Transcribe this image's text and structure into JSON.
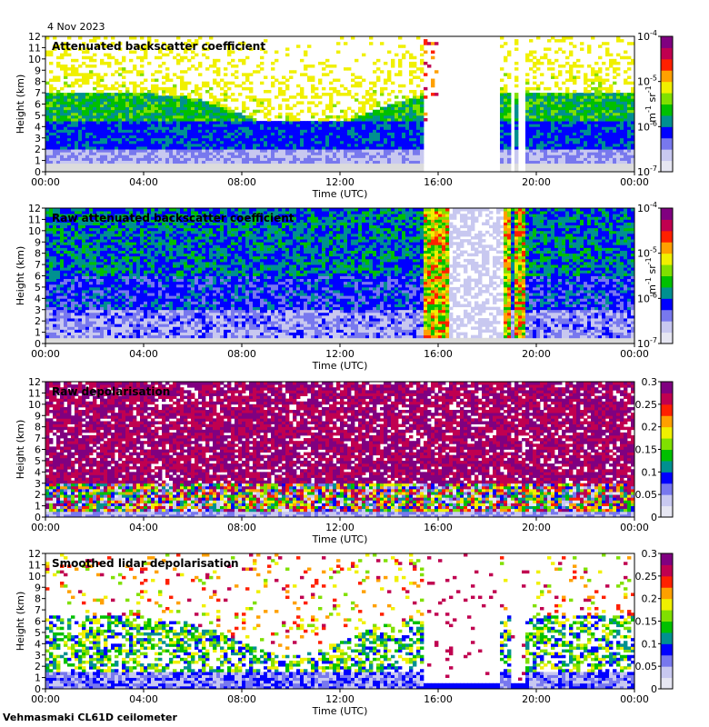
{
  "date": "4 Nov 2023",
  "footer": "Vehmasmaki CL61D ceilometer",
  "colors": {
    "colormap": [
      "#e6e6f2",
      "#c8c8f0",
      "#7878ee",
      "#0000ff",
      "#009090",
      "#00c000",
      "#80e000",
      "#f0f000",
      "#ffa000",
      "#ff2000",
      "#c00050",
      "#800080"
    ],
    "empty": "#dcdcdc",
    "background": "#ffffff"
  },
  "chart_data": [
    {
      "type": "heatmap",
      "title": "Attenuated backscatter coefficient",
      "xlabel": "Time (UTC)",
      "ylabel": "Height (km)",
      "x_ticks": [
        "00:00",
        "04:00",
        "08:00",
        "12:00",
        "16:00",
        "20:00",
        "00:00"
      ],
      "y_ticks": [
        "0",
        "1",
        "2",
        "3",
        "4",
        "5",
        "6",
        "7",
        "8",
        "9",
        "10",
        "11",
        "12"
      ],
      "xlim": [
        0,
        24
      ],
      "ylim": [
        0,
        12
      ],
      "colorbar": {
        "scale": "log",
        "unit_base": "m",
        "unit_exp1": "-1",
        "unit_mid": " sr",
        "unit_exp2": "-1",
        "ticks": [
          {
            "base": "10",
            "exp": "-7"
          },
          {
            "base": "10",
            "exp": "-6"
          },
          {
            "base": "10",
            "exp": "-5"
          },
          {
            "base": "10",
            "exp": "-4"
          }
        ]
      }
    },
    {
      "type": "heatmap",
      "title": "Raw attenuated backscatter coefficient",
      "xlabel": "Time (UTC)",
      "ylabel": "Height (km)",
      "x_ticks": [
        "00:00",
        "04:00",
        "08:00",
        "12:00",
        "16:00",
        "20:00",
        "00:00"
      ],
      "y_ticks": [
        "0",
        "1",
        "2",
        "3",
        "4",
        "5",
        "6",
        "7",
        "8",
        "9",
        "10",
        "11",
        "12"
      ],
      "xlim": [
        0,
        24
      ],
      "ylim": [
        0,
        12
      ],
      "colorbar": {
        "scale": "log",
        "unit_base": "m",
        "unit_exp1": "-1",
        "unit_mid": " sr",
        "unit_exp2": "-1",
        "ticks": [
          {
            "base": "10",
            "exp": "-7"
          },
          {
            "base": "10",
            "exp": "-6"
          },
          {
            "base": "10",
            "exp": "-5"
          },
          {
            "base": "10",
            "exp": "-4"
          }
        ]
      }
    },
    {
      "type": "heatmap",
      "title": "Raw depolarisation",
      "xlabel": "Time (UTC)",
      "ylabel": "Height (km)",
      "x_ticks": [
        "00:00",
        "04:00",
        "08:00",
        "12:00",
        "16:00",
        "20:00",
        "00:00"
      ],
      "y_ticks": [
        "0",
        "1",
        "2",
        "3",
        "4",
        "5",
        "6",
        "7",
        "8",
        "9",
        "10",
        "11",
        "12"
      ],
      "xlim": [
        0,
        24
      ],
      "ylim": [
        0,
        12
      ],
      "colorbar": {
        "scale": "linear",
        "ticks": [
          "0",
          "0.05",
          "0.1",
          "0.15",
          "0.2",
          "0.25",
          "0.3"
        ]
      }
    },
    {
      "type": "heatmap",
      "title": "Smoothed lidar depolarisation",
      "xlabel": "Time (UTC)",
      "ylabel": "Height (km)",
      "x_ticks": [
        "00:00",
        "04:00",
        "08:00",
        "12:00",
        "16:00",
        "20:00",
        "00:00"
      ],
      "y_ticks": [
        "0",
        "1",
        "2",
        "3",
        "4",
        "5",
        "6",
        "7",
        "8",
        "9",
        "10",
        "11",
        "12"
      ],
      "xlim": [
        0,
        24
      ],
      "ylim": [
        0,
        12
      ],
      "colorbar": {
        "scale": "linear",
        "ticks": [
          "0",
          "0.05",
          "0.1",
          "0.15",
          "0.2",
          "0.25",
          "0.3"
        ]
      }
    }
  ]
}
